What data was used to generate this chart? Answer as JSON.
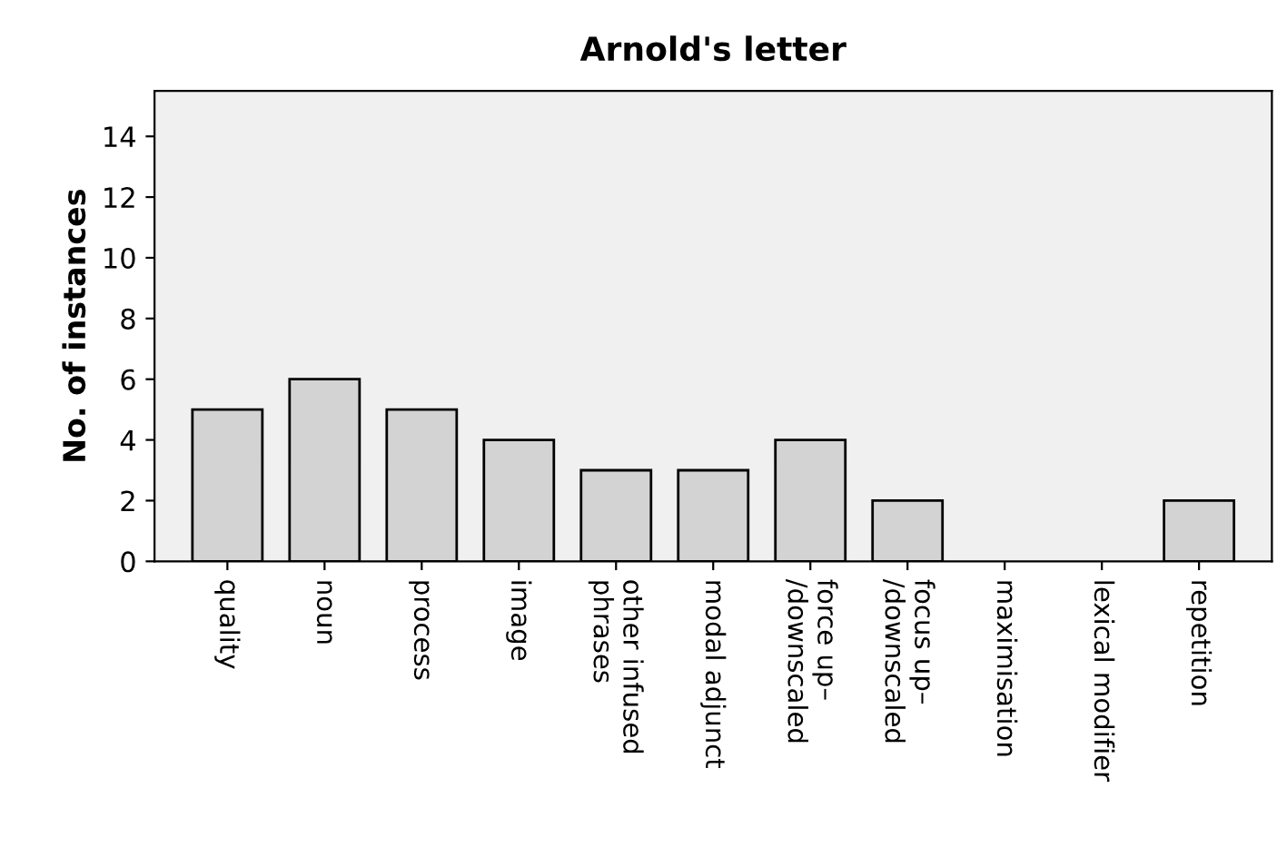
{
  "chart_data": {
    "type": "bar",
    "title": "Arnold's letter",
    "ylabel": "No. of instances",
    "categories": [
      "quality",
      "noun",
      "process",
      "image",
      "other infused\nphrases",
      "modal adjunct",
      "force up–\n/downscaled",
      "focus up–\n/downscaled",
      "maximisation",
      "lexical modifier",
      "repetition"
    ],
    "values": [
      5,
      6,
      5,
      4,
      3,
      3,
      4,
      2,
      0,
      0,
      2
    ],
    "color": "#d3d3d3",
    "ylim": [
      0,
      15.5
    ],
    "yticks": [
      0,
      2,
      4,
      6,
      8,
      10,
      12,
      14
    ],
    "grid": false,
    "legend": false
  }
}
